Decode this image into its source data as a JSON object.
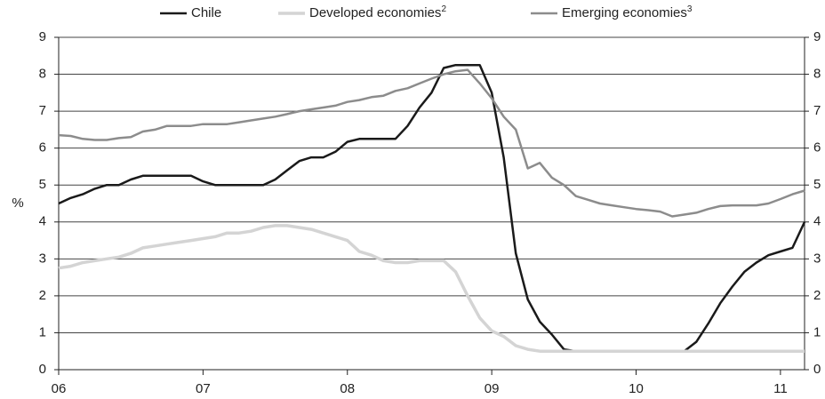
{
  "chart_data": {
    "type": "line",
    "y_label": "%",
    "x": [
      6,
      6.083,
      6.167,
      6.25,
      6.333,
      6.417,
      6.5,
      6.583,
      6.667,
      6.75,
      6.833,
      6.917,
      7,
      7.083,
      7.167,
      7.25,
      7.333,
      7.417,
      7.5,
      7.583,
      7.667,
      7.75,
      7.833,
      7.917,
      8,
      8.083,
      8.167,
      8.25,
      8.333,
      8.417,
      8.5,
      8.583,
      8.667,
      8.75,
      8.833,
      8.917,
      9,
      9.083,
      9.167,
      9.25,
      9.333,
      9.417,
      9.5,
      9.583,
      9.667,
      9.75,
      9.833,
      9.917,
      10,
      10.083,
      10.167,
      10.25,
      10.333,
      10.417,
      10.5,
      10.583,
      10.667,
      10.75,
      10.833,
      10.917,
      11,
      11.083,
      11.167
    ],
    "series": [
      {
        "name": "Chile",
        "color": "#1a1a1a",
        "values": [
          4.5,
          4.65,
          4.75,
          4.9,
          5.0,
          5.0,
          5.15,
          5.25,
          5.25,
          5.25,
          5.25,
          5.25,
          5.1,
          5.0,
          5.0,
          5.0,
          5.0,
          5.0,
          5.15,
          5.4,
          5.65,
          5.75,
          5.75,
          5.9,
          6.17,
          6.25,
          6.25,
          6.25,
          6.25,
          6.6,
          7.1,
          7.5,
          8.17,
          8.25,
          8.25,
          8.25,
          7.5,
          5.75,
          3.15,
          1.9,
          1.3,
          0.95,
          0.55,
          0.5,
          0.5,
          0.5,
          0.5,
          0.5,
          0.5,
          0.5,
          0.5,
          0.5,
          0.5,
          0.75,
          1.25,
          1.8,
          2.25,
          2.65,
          2.9,
          3.1,
          3.2,
          3.3,
          4.0
        ]
      },
      {
        "name": "Developed economies",
        "footnote": "2",
        "color": "#d4d4d4",
        "values": [
          2.75,
          2.8,
          2.9,
          2.95,
          3.0,
          3.05,
          3.15,
          3.3,
          3.35,
          3.4,
          3.45,
          3.5,
          3.55,
          3.6,
          3.7,
          3.7,
          3.75,
          3.85,
          3.9,
          3.9,
          3.85,
          3.8,
          3.7,
          3.6,
          3.5,
          3.2,
          3.1,
          2.95,
          2.9,
          2.9,
          2.95,
          2.95,
          2.95,
          2.65,
          2.0,
          1.4,
          1.05,
          0.9,
          0.65,
          0.55,
          0.5,
          0.5,
          0.5,
          0.5,
          0.5,
          0.5,
          0.5,
          0.5,
          0.5,
          0.5,
          0.5,
          0.5,
          0.5,
          0.5,
          0.5,
          0.5,
          0.5,
          0.5,
          0.5,
          0.5,
          0.5,
          0.5,
          0.5
        ]
      },
      {
        "name": "Emerging economies",
        "footnote": "3",
        "color": "#8c8c8c",
        "values": [
          6.35,
          6.33,
          6.25,
          6.22,
          6.22,
          6.27,
          6.3,
          6.45,
          6.5,
          6.6,
          6.6,
          6.6,
          6.65,
          6.65,
          6.65,
          6.7,
          6.75,
          6.8,
          6.85,
          6.92,
          7.0,
          7.05,
          7.1,
          7.15,
          7.25,
          7.3,
          7.38,
          7.42,
          7.55,
          7.62,
          7.75,
          7.88,
          8.0,
          8.08,
          8.12,
          7.75,
          7.35,
          6.85,
          6.5,
          5.45,
          5.6,
          5.2,
          5.0,
          4.7,
          4.6,
          4.5,
          4.45,
          4.4,
          4.35,
          4.32,
          4.28,
          4.15,
          4.2,
          4.25,
          4.35,
          4.43,
          4.45,
          4.45,
          4.45,
          4.5,
          4.62,
          4.75,
          4.85
        ]
      }
    ],
    "xlim": [
      6,
      11.167
    ],
    "xticks": [
      {
        "value": 6,
        "label": "06"
      },
      {
        "value": 7,
        "label": "07"
      },
      {
        "value": 8,
        "label": "08"
      },
      {
        "value": 9,
        "label": "09"
      },
      {
        "value": 10,
        "label": "10"
      },
      {
        "value": 11,
        "label": "11"
      }
    ],
    "ylim": [
      0,
      9
    ],
    "yticks": [
      0,
      1,
      2,
      3,
      4,
      5,
      6,
      7,
      8,
      9
    ],
    "grid": true,
    "legend": "top"
  }
}
